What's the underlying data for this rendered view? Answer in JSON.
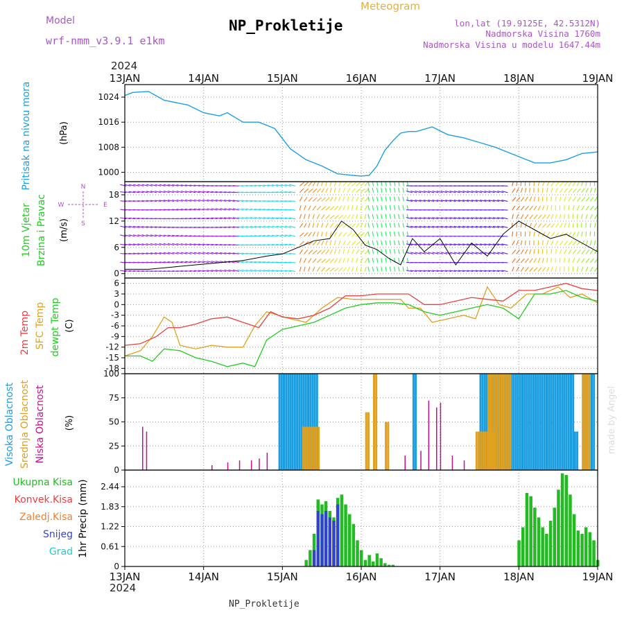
{
  "header": {
    "title": "NP_Prokletije",
    "subtitle": "Meteogram",
    "model_label": "Model",
    "model_name": "wrf-nmm_v3.9.1 e1km",
    "coords": "lon,lat (19.9125E, 42.5312N)",
    "elevation": "Nadmorska Visina 1760m",
    "model_elevation": "Nadmorska Visina u modelu 1647.44m",
    "footer": "NP_Prokletije",
    "credit": "made by Angel"
  },
  "time_axis": {
    "year": "2024",
    "labels": [
      "13JAN",
      "14JAN",
      "15JAN",
      "16JAN",
      "17JAN",
      "18JAN",
      "19JAN"
    ]
  },
  "colors": {
    "pressure": "#1a9ee0",
    "t2m": "#e84040",
    "sfc": "#e0a020",
    "dewpt": "#22cc22",
    "high_cloud": "#1a9ee0",
    "mid_cloud": "#e0a020",
    "low_cloud": "#c01090",
    "precip": "#22bb22",
    "snow": "#3344cc"
  },
  "chart_data": [
    {
      "type": "line",
      "id": "pressure",
      "ylabel_lines": [
        "Pritisak na nivou mora",
        "(hPa)"
      ],
      "ylim": [
        997,
        1028
      ],
      "yticks": [
        1000,
        1008,
        1016,
        1024
      ],
      "xlim": [
        0,
        6
      ],
      "series": [
        {
          "x": [
            0,
            0.1,
            0.3,
            0.5,
            0.8,
            1.0,
            1.2,
            1.3,
            1.5,
            1.7,
            1.9,
            2.1,
            2.3,
            2.5,
            2.7,
            2.9,
            3.0,
            3.1,
            3.2,
            3.3,
            3.4,
            3.5,
            3.6,
            3.7,
            3.9,
            4.1,
            4.3,
            4.5,
            4.7,
            4.9,
            5.0,
            5.2,
            5.4,
            5.6,
            5.8,
            6.0
          ],
          "y": [
            1024.5,
            1025.5,
            1025.8,
            1023,
            1021.5,
            1019,
            1018,
            1019,
            1016,
            1016,
            1014,
            1007.5,
            1004,
            1002,
            999.5,
            999,
            998.8,
            999,
            1002,
            1007,
            1010,
            1012.5,
            1013,
            1013,
            1014.5,
            1012,
            1011,
            1009.5,
            1008,
            1006,
            1005,
            1003,
            1003,
            1004,
            1006,
            1006.5
          ]
        }
      ]
    },
    {
      "type": "line",
      "id": "wind",
      "ylabel_lines": [
        "10m Vjetar",
        "Brzina i Pravac",
        "(m/s)"
      ],
      "compass": {
        "n": "N",
        "s": "S",
        "w": "W",
        "e": "E"
      },
      "ylim": [
        -1,
        21
      ],
      "yticks": [
        0,
        6,
        12,
        18
      ],
      "xlim": [
        0,
        6
      ],
      "series": [
        {
          "name": "speed",
          "x": [
            0,
            0.3,
            0.6,
            0.9,
            1.2,
            1.5,
            1.8,
            2.0,
            2.2,
            2.4,
            2.6,
            2.75,
            2.9,
            3.05,
            3.2,
            3.35,
            3.5,
            3.65,
            3.8,
            4.0,
            4.2,
            4.4,
            4.6,
            4.8,
            5.0,
            5.2,
            5.4,
            5.6,
            5.8,
            6.0
          ],
          "y": [
            1,
            1,
            1.5,
            2,
            2.5,
            3,
            4,
            4.5,
            6,
            7.5,
            8,
            12,
            10,
            6.5,
            5.5,
            3.5,
            2,
            8,
            5,
            8,
            2,
            7,
            4,
            9,
            12,
            10,
            8,
            9,
            7,
            5
          ]
        }
      ]
    },
    {
      "type": "line",
      "id": "temperature",
      "ylabel_lines": [
        "2m Temp",
        "SFC Temp",
        "dewpt Temp",
        "(C)"
      ],
      "ylim": [
        -19.5,
        7.5
      ],
      "yticks": [
        -18,
        -15,
        -12,
        -9,
        -6,
        -3,
        0,
        3,
        6
      ],
      "xlim": [
        0,
        6
      ],
      "series": [
        {
          "name": "2m Temp",
          "x": [
            0,
            0.2,
            0.4,
            0.55,
            0.7,
            0.9,
            1.1,
            1.3,
            1.5,
            1.7,
            1.85,
            2.0,
            2.2,
            2.4,
            2.6,
            2.8,
            3.0,
            3.2,
            3.4,
            3.6,
            3.8,
            4.0,
            4.2,
            4.4,
            4.6,
            4.8,
            5.0,
            5.2,
            5.4,
            5.6,
            5.8,
            6.0
          ],
          "y": [
            -11.5,
            -11,
            -9,
            -6.5,
            -6.5,
            -5.5,
            -4,
            -3.5,
            -5,
            -6.5,
            -2,
            -3.5,
            -4,
            -3,
            -1,
            2.5,
            2.5,
            3,
            3,
            3,
            0,
            0,
            1,
            2,
            1.5,
            1,
            4,
            4,
            5,
            6,
            4.5,
            4
          ]
        },
        {
          "name": "SFC Temp",
          "x": [
            0,
            0.2,
            0.35,
            0.5,
            0.6,
            0.7,
            0.9,
            1.1,
            1.3,
            1.5,
            1.65,
            1.8,
            1.95,
            2.1,
            2.3,
            2.5,
            2.7,
            2.9,
            3.1,
            3.3,
            3.5,
            3.6,
            3.75,
            3.9,
            4.1,
            4.3,
            4.45,
            4.6,
            4.75,
            4.9,
            5.1,
            5.3,
            5.5,
            5.65,
            5.8,
            6.0
          ],
          "y": [
            -14.5,
            -13,
            -9,
            -3.5,
            -5,
            -11.5,
            -12.5,
            -11.5,
            -12,
            -12,
            -6,
            -2,
            -3,
            -4,
            -5,
            -1,
            2,
            1.5,
            1.5,
            1.5,
            1.5,
            -1,
            -1,
            -5,
            -4,
            -3,
            -4,
            5,
            0,
            -1,
            3,
            3,
            5,
            2,
            3,
            0.5
          ]
        },
        {
          "name": "dewpt Temp",
          "x": [
            0,
            0.2,
            0.35,
            0.5,
            0.7,
            0.9,
            1.1,
            1.3,
            1.5,
            1.65,
            1.8,
            2.0,
            2.2,
            2.4,
            2.6,
            2.8,
            3.0,
            3.2,
            3.4,
            3.6,
            3.8,
            4.0,
            4.2,
            4.4,
            4.6,
            4.8,
            5.0,
            5.2,
            5.4,
            5.6,
            5.8,
            6.0
          ],
          "y": [
            -14.5,
            -14.5,
            -16,
            -12.5,
            -13,
            -15,
            -16,
            -17.5,
            -16.5,
            -17.5,
            -10,
            -7,
            -6,
            -5,
            -3,
            -1,
            0,
            0.5,
            0.5,
            0,
            -2,
            -3,
            -2,
            -1,
            0,
            -1,
            -4,
            3,
            3,
            4,
            2,
            1
          ]
        }
      ]
    },
    {
      "type": "bar",
      "id": "clouds",
      "ylabel_lines": [
        "Visoka Oblacnost",
        "Srednja Oblacnost",
        "Niska Oblacnost",
        "(%)"
      ],
      "ylim": [
        0,
        100
      ],
      "yticks": [
        0,
        25,
        50,
        75,
        100
      ],
      "xlim": [
        0,
        6
      ],
      "series": [
        {
          "name": "Visoka Oblacnost",
          "blocks": [
            {
              "x0": 1.95,
              "x1": 2.45,
              "y": 100
            },
            {
              "x0": 3.65,
              "x1": 3.7,
              "y": 100
            },
            {
              "x0": 4.5,
              "x1": 5.7,
              "y": 100
            },
            {
              "x0": 5.7,
              "x1": 5.73,
              "y": 40
            },
            {
              "x0": 5.8,
              "x1": 5.95,
              "y": 100
            }
          ]
        },
        {
          "name": "Srednja Oblacnost",
          "blocks": [
            {
              "x0": 2.25,
              "x1": 2.45,
              "y": 45
            },
            {
              "x0": 3.05,
              "x1": 3.1,
              "y": 60
            },
            {
              "x0": 3.15,
              "x1": 3.2,
              "y": 100
            },
            {
              "x0": 3.3,
              "x1": 3.35,
              "y": 50
            },
            {
              "x0": 4.45,
              "x1": 4.7,
              "y": 40
            },
            {
              "x0": 4.6,
              "x1": 4.9,
              "y": 100
            },
            {
              "x0": 5.8,
              "x1": 5.9,
              "y": 100
            }
          ]
        },
        {
          "name": "Niska Oblacnost",
          "bars": [
            {
              "x": 0.22,
              "y": 45
            },
            {
              "x": 0.27,
              "y": 40
            },
            {
              "x": 1.1,
              "y": 5
            },
            {
              "x": 1.3,
              "y": 8
            },
            {
              "x": 1.45,
              "y": 10
            },
            {
              "x": 1.6,
              "y": 10
            },
            {
              "x": 1.7,
              "y": 12
            },
            {
              "x": 1.8,
              "y": 18
            },
            {
              "x": 3.55,
              "y": 15
            },
            {
              "x": 3.75,
              "y": 20
            },
            {
              "x": 3.85,
              "y": 72
            },
            {
              "x": 3.95,
              "y": 65
            },
            {
              "x": 4.0,
              "y": 70
            },
            {
              "x": 4.15,
              "y": 15
            },
            {
              "x": 4.3,
              "y": 10
            }
          ]
        }
      ]
    },
    {
      "type": "bar",
      "id": "precip",
      "ylabel_lines": [
        "1hr Precip (mm)"
      ],
      "legend": [
        "Ukupna Kisa",
        "Konvek.Kisa",
        "Zaledj.Kisa",
        "Snijeg",
        "Grad"
      ],
      "legend_colors": [
        "#22bb22",
        "#e84040",
        "#f08030",
        "#3344cc",
        "#22cccc"
      ],
      "ylim": [
        0,
        2.95
      ],
      "yticks": [
        0,
        0.61,
        1.22,
        1.83,
        2.44
      ],
      "ytick_labels": [
        "0",
        "0.61",
        "1.22",
        "1.83",
        "2.44"
      ],
      "xlim": [
        0,
        6
      ],
      "series": [
        {
          "name": "Ukupna Kisa",
          "x": [
            2.3,
            2.35,
            2.4,
            2.45,
            2.5,
            2.55,
            2.6,
            2.65,
            2.7,
            2.75,
            2.8,
            2.85,
            2.9,
            2.95,
            3.0,
            3.05,
            3.1,
            3.15,
            3.2,
            3.25,
            3.3,
            3.35,
            3.4,
            5.0,
            5.05,
            5.1,
            5.15,
            5.2,
            5.25,
            5.3,
            5.35,
            5.4,
            5.45,
            5.5,
            5.55,
            5.6,
            5.65,
            5.7,
            5.75,
            5.8,
            5.85,
            5.9,
            5.95,
            6.0
          ],
          "y": [
            0.2,
            0.5,
            1.0,
            2.05,
            1.9,
            2.0,
            1.7,
            1.5,
            2.1,
            2.2,
            1.9,
            1.6,
            1.3,
            0.8,
            0.5,
            0.2,
            0.35,
            0.15,
            0.4,
            0.25,
            0.1,
            0.05,
            0.05,
            0.8,
            1.2,
            2.25,
            2.15,
            1.8,
            1.5,
            1.2,
            1.0,
            1.4,
            1.8,
            2.35,
            2.85,
            2.8,
            2.2,
            1.6,
            1.1,
            1.0,
            1.2,
            1.05,
            0.8,
            0.2
          ]
        },
        {
          "name": "Snijeg",
          "x": [
            2.4,
            2.45,
            2.5,
            2.55,
            2.6,
            2.65,
            2.7
          ],
          "y": [
            0.5,
            1.7,
            1.6,
            1.7,
            1.5,
            1.4,
            1.9
          ]
        }
      ]
    }
  ]
}
